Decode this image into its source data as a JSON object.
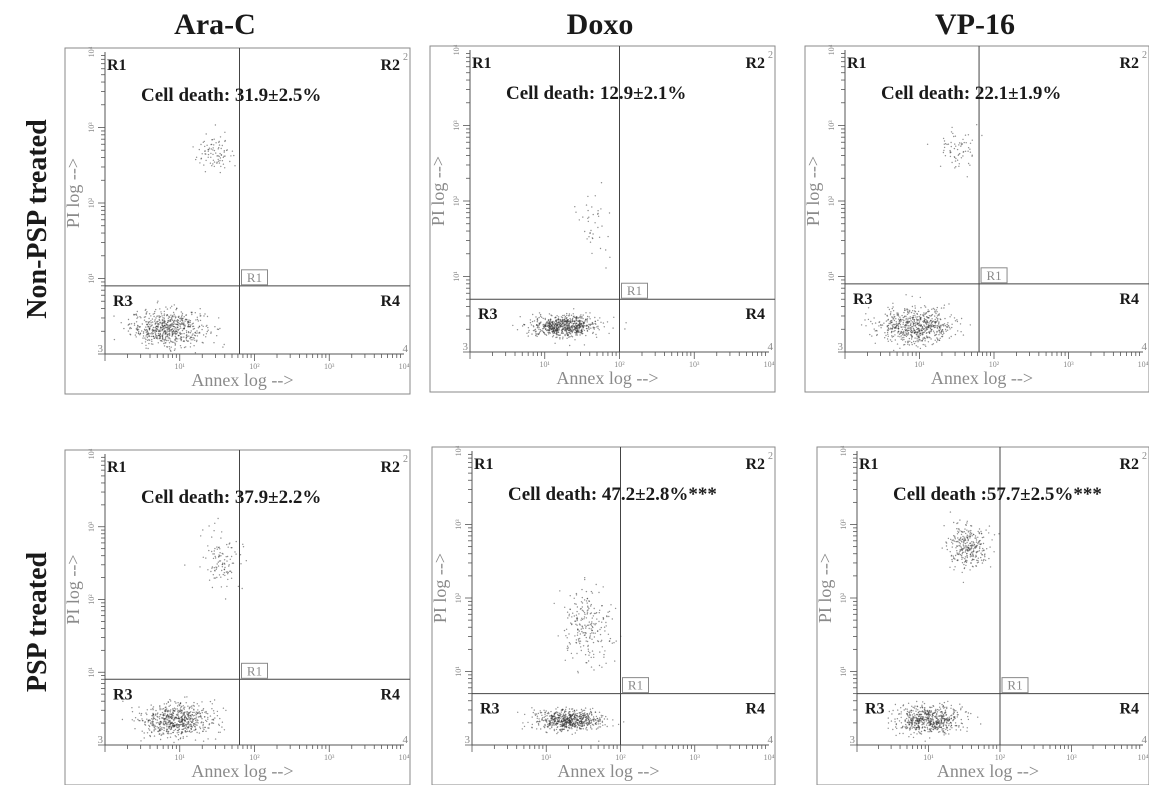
{
  "figure": {
    "column_titles": [
      "Ara-C",
      "Doxo",
      "VP-16"
    ],
    "row_titles": [
      "Non-PSP treated",
      "PSP treated"
    ],
    "colors": {
      "ink": "#1a1a1a",
      "axis": "#555555",
      "gate": "#444444",
      "axis_label": "#8a8a8a",
      "dots": "#333333"
    }
  },
  "chart_data": [
    {
      "type": "scatter",
      "row": "Non-PSP treated",
      "column": "Ara-C",
      "xlabel": "Annex log -->",
      "ylabel": "PI log -->",
      "x_scale": "log",
      "y_scale": "log",
      "xlim": [
        1,
        10000
      ],
      "ylim": [
        1,
        10000
      ],
      "x_ticks": [
        "10¹",
        "10²",
        "10³",
        "10⁴"
      ],
      "y_ticks": [
        "10¹",
        "10²",
        "10³",
        "10⁴"
      ],
      "gate_cross": {
        "x": 63,
        "y": 8
      },
      "quadrants": [
        "R1",
        "R2",
        "R3",
        "R4"
      ],
      "gate_label": "R1",
      "corner_numbers": [
        "2",
        "3",
        "4"
      ],
      "annotation": "Cell death: 31.9±2.5%",
      "clusters": [
        {
          "x": 7,
          "y": 2.2,
          "n": 650,
          "sx": 0.25,
          "sy": 0.12
        },
        {
          "x": 30,
          "y": 450,
          "n": 90,
          "sx": 0.14,
          "sy": 0.12
        }
      ]
    },
    {
      "type": "scatter",
      "row": "Non-PSP treated",
      "column": "Doxo",
      "xlabel": "Annex log -->",
      "ylabel": "PI log -->",
      "x_scale": "log",
      "y_scale": "log",
      "xlim": [
        1,
        10000
      ],
      "ylim": [
        1,
        10000
      ],
      "x_ticks": [
        "10¹",
        "10²",
        "10³",
        "10⁴"
      ],
      "y_ticks": [
        "10¹",
        "10²",
        "10³",
        "10⁴"
      ],
      "gate_cross": {
        "x": 100,
        "y": 5
      },
      "quadrants": [
        "R1",
        "R2",
        "R3",
        "R4"
      ],
      "gate_label": "R1",
      "corner_numbers": [
        "2",
        "3",
        "4"
      ],
      "annotation": "Cell death: 12.9±2.1%",
      "clusters": [
        {
          "x": 18,
          "y": 2.2,
          "n": 700,
          "sx": 0.22,
          "sy": 0.07
        },
        {
          "x": 45,
          "y": 50,
          "n": 40,
          "sx": 0.12,
          "sy": 0.2
        }
      ]
    },
    {
      "type": "scatter",
      "row": "Non-PSP treated",
      "column": "VP-16",
      "xlabel": "Annex log -->",
      "ylabel": "PI log -->",
      "x_scale": "log",
      "y_scale": "log",
      "xlim": [
        1,
        10000
      ],
      "ylim": [
        1,
        10000
      ],
      "x_ticks": [
        "10¹",
        "10²",
        "10³",
        "10⁴"
      ],
      "y_ticks": [
        "10¹",
        "10²",
        "10³",
        "10⁴"
      ],
      "gate_cross": {
        "x": 63,
        "y": 8
      },
      "quadrants": [
        "R1",
        "R2",
        "R3",
        "R4"
      ],
      "gate_label": "R1",
      "corner_numbers": [
        "2",
        "3",
        "4"
      ],
      "annotation": "Cell death: 22.1±1.9%",
      "clusters": [
        {
          "x": 9,
          "y": 2.2,
          "n": 650,
          "sx": 0.25,
          "sy": 0.12
        },
        {
          "x": 30,
          "y": 480,
          "n": 70,
          "sx": 0.13,
          "sy": 0.12
        }
      ]
    },
    {
      "type": "scatter",
      "row": "PSP treated",
      "column": "Ara-C",
      "xlabel": "Annex log -->",
      "ylabel": "PI log -->",
      "x_scale": "log",
      "y_scale": "log",
      "xlim": [
        1,
        10000
      ],
      "ylim": [
        1,
        10000
      ],
      "x_ticks": [
        "10¹",
        "10²",
        "10³",
        "10⁴"
      ],
      "y_ticks": [
        "10¹",
        "10²",
        "10³",
        "10⁴"
      ],
      "gate_cross": {
        "x": 63,
        "y": 8
      },
      "quadrants": [
        "R1",
        "R2",
        "R3",
        "R4"
      ],
      "gate_label": "R1",
      "corner_numbers": [
        "2",
        "3",
        "4"
      ],
      "annotation": "Cell death: 37.9±2.2%",
      "clusters": [
        {
          "x": 9,
          "y": 2.2,
          "n": 650,
          "sx": 0.25,
          "sy": 0.12
        },
        {
          "x": 35,
          "y": 350,
          "n": 110,
          "sx": 0.15,
          "sy": 0.2
        }
      ]
    },
    {
      "type": "scatter",
      "row": "PSP treated",
      "column": "Doxo",
      "xlabel": "Annex log -->",
      "ylabel": "PI log -->",
      "x_scale": "log",
      "y_scale": "log",
      "xlim": [
        1,
        10000
      ],
      "ylim": [
        1,
        10000
      ],
      "x_ticks": [
        "10¹",
        "10²",
        "10³",
        "10⁴"
      ],
      "y_ticks": [
        "10¹",
        "10²",
        "10³",
        "10⁴"
      ],
      "gate_cross": {
        "x": 100,
        "y": 5
      },
      "quadrants": [
        "R1",
        "R2",
        "R3",
        "R4"
      ],
      "gate_label": "R1",
      "corner_numbers": [
        "2",
        "3",
        "4"
      ],
      "annotation": "Cell death: 47.2±2.8%***",
      "clusters": [
        {
          "x": 20,
          "y": 2.2,
          "n": 650,
          "sx": 0.22,
          "sy": 0.07
        },
        {
          "x": 35,
          "y": 40,
          "n": 230,
          "sx": 0.17,
          "sy": 0.25
        }
      ]
    },
    {
      "type": "scatter",
      "row": "PSP treated",
      "column": "VP-16",
      "xlabel": "Annex log -->",
      "ylabel": "PI log -->",
      "x_scale": "log",
      "y_scale": "log",
      "xlim": [
        1,
        10000
      ],
      "ylim": [
        1,
        10000
      ],
      "x_ticks": [
        "10¹",
        "10²",
        "10³",
        "10⁴"
      ],
      "y_ticks": [
        "10¹",
        "10²",
        "10³",
        "10⁴"
      ],
      "gate_cross": {
        "x": 100,
        "y": 5
      },
      "quadrants": [
        "R1",
        "R2",
        "R3",
        "R4"
      ],
      "gate_label": "R1",
      "corner_numbers": [
        "2",
        "3",
        "4"
      ],
      "annotation": "Cell death :57.7±2.5%***",
      "clusters": [
        {
          "x": 10,
          "y": 2.2,
          "n": 600,
          "sx": 0.23,
          "sy": 0.1
        },
        {
          "x": 35,
          "y": 500,
          "n": 300,
          "sx": 0.14,
          "sy": 0.15
        }
      ]
    }
  ]
}
